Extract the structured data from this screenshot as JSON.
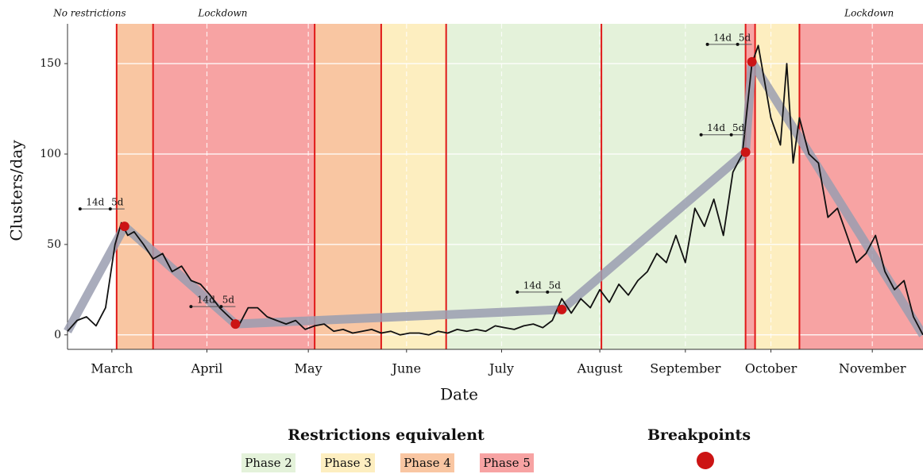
{
  "chart_data": {
    "type": "line",
    "ylabel": "Clusters/day",
    "xlabel": "Date",
    "annotations": [
      {
        "text": "No restrictions",
        "x": 7
      },
      {
        "text": "Lockdown",
        "x": 49
      },
      {
        "text": "Lockdown",
        "x": 253
      }
    ],
    "x": [
      0,
      3,
      6,
      9,
      12,
      15,
      17,
      19,
      21,
      24,
      27,
      30,
      33,
      36,
      39,
      42,
      45,
      48,
      51,
      54,
      57,
      60,
      63,
      66,
      69,
      72,
      75,
      78,
      81,
      84,
      87,
      90,
      93,
      96,
      99,
      102,
      105,
      108,
      111,
      114,
      117,
      120,
      123,
      126,
      129,
      132,
      135,
      138,
      141,
      144,
      147,
      150,
      153,
      156,
      159,
      162,
      165,
      168,
      171,
      174,
      177,
      180,
      183,
      186,
      189,
      192,
      195,
      198,
      201,
      204,
      207,
      210,
      213,
      216,
      218,
      220,
      222,
      225,
      227,
      229,
      231,
      234,
      237,
      240,
      243,
      246,
      249,
      252,
      255,
      258,
      261,
      264,
      267,
      270
    ],
    "values": [
      2,
      8,
      10,
      5,
      15,
      50,
      62,
      55,
      57,
      50,
      42,
      45,
      35,
      38,
      30,
      28,
      22,
      15,
      10,
      5,
      15,
      15,
      10,
      8,
      6,
      8,
      3,
      5,
      6,
      2,
      3,
      1,
      2,
      3,
      1,
      2,
      0,
      1,
      1,
      0,
      2,
      1,
      3,
      2,
      3,
      2,
      5,
      4,
      3,
      5,
      6,
      4,
      8,
      20,
      12,
      20,
      15,
      25,
      18,
      28,
      22,
      30,
      35,
      45,
      40,
      55,
      40,
      70,
      60,
      75,
      55,
      90,
      100,
      150,
      160,
      140,
      120,
      105,
      150,
      95,
      120,
      100,
      95,
      65,
      70,
      55,
      40,
      45,
      55,
      35,
      25,
      30,
      10,
      0
    ],
    "color": "#111111",
    "trend": {
      "x": [
        0,
        18,
        53,
        156,
        214,
        216,
        270
      ],
      "values": [
        2,
        60,
        6,
        14,
        101,
        151,
        0
      ],
      "color": "#9a9db0"
    },
    "breakpoints": {
      "x": [
        18,
        53,
        156,
        214,
        216
      ],
      "values": [
        60,
        6,
        14,
        101,
        151
      ],
      "color": "#cc1414"
    },
    "breakpoint_labels": [
      "14d",
      "5d"
    ],
    "periods": [
      {
        "start": 15.5,
        "end": 27,
        "color": "#f9c6a2"
      },
      {
        "start": 27,
        "end": 78,
        "color": "#f7a3a3"
      },
      {
        "start": 78,
        "end": 99,
        "color": "#f9c6a2"
      },
      {
        "start": 99,
        "end": 119.5,
        "color": "#fdeec0"
      },
      {
        "start": 119.5,
        "end": 168.5,
        "color": "#e4f2da"
      },
      {
        "start": 168.5,
        "end": 214,
        "color": "#e4f2da"
      },
      {
        "start": 214,
        "end": 217,
        "color": "#f7a3a3"
      },
      {
        "start": 217,
        "end": 231,
        "color": "#fdeec0"
      },
      {
        "start": 231,
        "end": 270,
        "color": "#f7a3a3"
      }
    ],
    "xlim": [
      0,
      270
    ],
    "xticks": [
      {
        "value": 14,
        "label": "March"
      },
      {
        "value": 44,
        "label": "April"
      },
      {
        "value": 76,
        "label": "May"
      },
      {
        "value": 107,
        "label": "June"
      },
      {
        "value": 137,
        "label": "July"
      },
      {
        "value": 168,
        "label": "August"
      },
      {
        "value": 195,
        "label": "September"
      },
      {
        "value": 222,
        "label": "October"
      },
      {
        "value": 254,
        "label": "November"
      }
    ],
    "ylim": [
      -8,
      172
    ],
    "yticks": [
      0,
      50,
      100,
      150
    ],
    "grid": true,
    "legend_title": "Restrictions equivalent",
    "legend": [
      {
        "name": "Phase 2",
        "color": "#e4f2da"
      },
      {
        "name": "Phase 3",
        "color": "#fdeec0"
      },
      {
        "name": "Phase 4",
        "color": "#f9c6a2"
      },
      {
        "name": "Phase 5",
        "color": "#f7a3a3"
      }
    ],
    "breakpoints_title": "Breakpoints"
  }
}
